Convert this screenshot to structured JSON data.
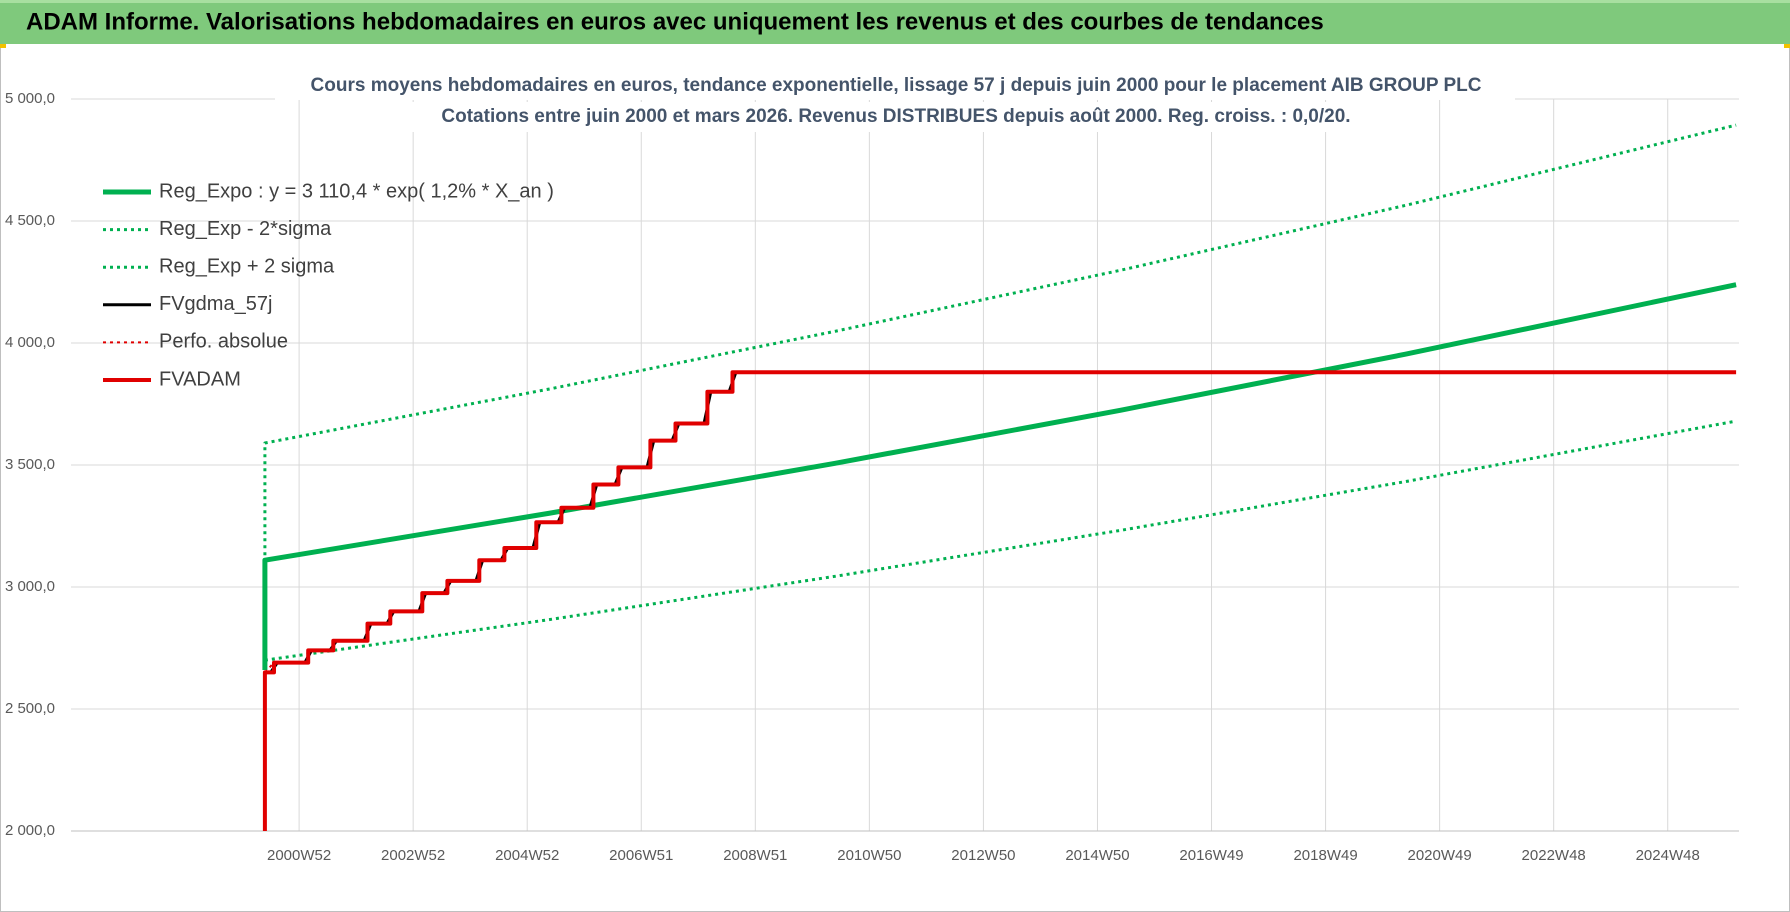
{
  "chart_data": {
    "type": "line",
    "header": "ADAM Informe. Valorisations hebdomadaires en euros avec uniquement les revenus et des courbes de tendances",
    "title": "Cours moyens hebdomadaires en euros, tendance exponentielle, lissage 57 j depuis juin 2000 pour le placement AIB GROUP PLC",
    "subtitle": "Cotations entre juin 2000 et mars 2026. Revenus DISTRIBUES depuis août 2000. Reg. croiss. : 0,0/20.",
    "xlim": [
      1997,
      2026.25
    ],
    "xticks": [
      {
        "value": 2001.0,
        "label": "2000W52"
      },
      {
        "value": 2003.0,
        "label": "2002W52"
      },
      {
        "value": 2005.0,
        "label": "2004W52"
      },
      {
        "value": 2007.0,
        "label": "2006W51"
      },
      {
        "value": 2009.0,
        "label": "2008W51"
      },
      {
        "value": 2011.0,
        "label": "2010W50"
      },
      {
        "value": 2013.0,
        "label": "2012W50"
      },
      {
        "value": 2015.0,
        "label": "2014W50"
      },
      {
        "value": 2017.0,
        "label": "2016W49"
      },
      {
        "value": 2019.0,
        "label": "2018W49"
      },
      {
        "value": 2021.0,
        "label": "2020W49"
      },
      {
        "value": 2023.0,
        "label": "2022W48"
      },
      {
        "value": 2025.0,
        "label": "2024W48"
      }
    ],
    "ylim": [
      2000,
      5000
    ],
    "yticks": [
      {
        "value": 2000,
        "label": "2 000,0"
      },
      {
        "value": 2500,
        "label": "2 500,0"
      },
      {
        "value": 3000,
        "label": "3 000,0"
      },
      {
        "value": 3500,
        "label": "3 500,0"
      },
      {
        "value": 4000,
        "label": "4 000,0"
      },
      {
        "value": 4500,
        "label": "4 500,0"
      },
      {
        "value": 5000,
        "label": "5 000,0"
      }
    ],
    "grid": true,
    "legend": "upper left",
    "series": [
      {
        "name": "Reg_Expo : y = 3 110,4 * exp( 1,2% *  X_an )",
        "color": "#00b050",
        "dash": "solid",
        "x": [
          2000.4,
          2000.4,
          2005.4,
          2010.4,
          2015.4,
          2020.4,
          2026.2
        ],
        "values": [
          2660,
          3110,
          3303,
          3507,
          3724,
          3954,
          4239
        ]
      },
      {
        "name": "Reg_Exp - 2*sigma",
        "color": "#00b050",
        "dash": "dotted",
        "x": [
          2000.4,
          2005.4,
          2010.4,
          2015.4,
          2020.4,
          2026.2
        ],
        "values": [
          2700,
          2867,
          3044,
          3232,
          3432,
          3680
        ]
      },
      {
        "name": "Reg_Exp + 2 sigma",
        "color": "#00b050",
        "dash": "dotted",
        "x": [
          2000.4,
          2000.4,
          2005.4,
          2010.4,
          2015.4,
          2020.4,
          2026.2
        ],
        "values": [
          2700,
          3590,
          3812,
          4048,
          4298,
          4564,
          4893
        ]
      },
      {
        "name": "FVgdma_57j",
        "color": "#000000",
        "dash": "solid",
        "x": [
          2000.4,
          2000.5,
          2000.62,
          2001.1,
          2001.22,
          2001.54,
          2001.66,
          2002.14,
          2002.26,
          2002.54,
          2002.66,
          2003.1,
          2003.22,
          2003.54,
          2003.66,
          2004.1,
          2004.22,
          2004.54,
          2004.66,
          2005.1,
          2005.22,
          2005.54,
          2005.66,
          2006.1,
          2006.22,
          2006.54,
          2006.66,
          2007.1,
          2007.22,
          2007.54,
          2007.66,
          2008.1,
          2008.22,
          2008.54,
          2008.66,
          2008.86
        ],
        "values": [
          2650,
          2650,
          2690,
          2690,
          2740,
          2740,
          2780,
          2780,
          2850,
          2850,
          2900,
          2900,
          2975,
          2975,
          3025,
          3025,
          3110,
          3110,
          3160,
          3160,
          3265,
          3265,
          3325,
          3325,
          3420,
          3420,
          3490,
          3490,
          3600,
          3600,
          3670,
          3670,
          3800,
          3800,
          3880,
          3880
        ]
      },
      {
        "name": "Perfo. absolue",
        "color": "#e00000",
        "dash": "dotted",
        "x": [
          2000.4,
          2000.56
        ],
        "values": [
          2650,
          2690
        ]
      },
      {
        "name": "FVADAM",
        "color": "#e00000",
        "dash": "solid",
        "x": [
          2000.4,
          2000.4,
          2000.56,
          2000.56,
          2001.16,
          2001.16,
          2001.6,
          2001.6,
          2002.2,
          2002.2,
          2002.6,
          2002.6,
          2003.16,
          2003.16,
          2003.6,
          2003.6,
          2004.16,
          2004.16,
          2004.6,
          2004.6,
          2005.16,
          2005.16,
          2005.6,
          2005.6,
          2006.16,
          2006.16,
          2006.6,
          2006.6,
          2007.16,
          2007.16,
          2007.6,
          2007.6,
          2008.16,
          2008.16,
          2008.6,
          2008.6,
          2026.2
        ],
        "values": [
          2000,
          2650,
          2650,
          2690,
          2690,
          2740,
          2740,
          2780,
          2780,
          2850,
          2850,
          2900,
          2900,
          2975,
          2975,
          3025,
          3025,
          3110,
          3110,
          3160,
          3160,
          3265,
          3265,
          3325,
          3325,
          3420,
          3420,
          3490,
          3490,
          3600,
          3600,
          3670,
          3670,
          3800,
          3800,
          3880,
          3880
        ]
      }
    ]
  }
}
